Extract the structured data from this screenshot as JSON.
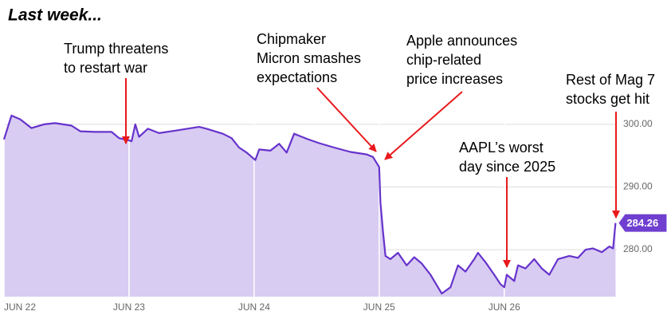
{
  "chart_data": {
    "type": "area",
    "title": "Last week...",
    "x": [
      0,
      0.06,
      0.13,
      0.22,
      0.32,
      0.41,
      0.54,
      0.61,
      0.73,
      0.86,
      0.92,
      0.99,
      1.02,
      1.05,
      1.08,
      1.15,
      1.24,
      1.37,
      1.56,
      1.62,
      1.75,
      1.82,
      1.88,
      1.94,
      2.01,
      2.04,
      2.13,
      2.2,
      2.26,
      2.32,
      2.42,
      2.52,
      2.64,
      2.77,
      2.9,
      2.95,
      3.0,
      3.01,
      3.03,
      3.05,
      3.09,
      3.15,
      3.22,
      3.28,
      3.34,
      3.41,
      3.47,
      3.5,
      3.57,
      3.63,
      3.69,
      3.76,
      3.79,
      3.85,
      3.92,
      3.97,
      4.0,
      4.02,
      4.08,
      4.11,
      4.17,
      4.24,
      4.3,
      4.36,
      4.43,
      4.52,
      4.59,
      4.65,
      4.71,
      4.78,
      4.84,
      4.87,
      4.89
    ],
    "series": [
      {
        "color": "#6633cc",
        "fill": "#d9ccf2",
        "values": [
          297.6,
          301.4,
          300.8,
          299.4,
          300,
          300.2,
          299.8,
          298.9,
          298.8,
          298.8,
          297.8,
          297.5,
          297.3,
          300,
          298,
          299.3,
          298.6,
          299,
          299.6,
          299.3,
          298.5,
          297.8,
          296.3,
          295.5,
          294.3,
          296,
          295.8,
          296.9,
          295.5,
          298.5,
          297.7,
          297,
          296.3,
          295.6,
          295.2,
          294.8,
          293.2,
          287.5,
          283,
          279,
          278.5,
          279.5,
          277.5,
          278.8,
          277.8,
          276,
          274,
          273,
          274,
          277.5,
          276.5,
          278.5,
          279.5,
          278,
          276,
          274.5,
          274,
          276,
          275,
          277.5,
          277,
          278.5,
          277,
          276,
          278.5,
          279,
          278.7,
          280,
          280.2,
          279.6,
          280.5,
          280.2,
          284.26
        ]
      }
    ],
    "xlim": [
      0,
      4.9
    ],
    "xticks": [
      {
        "value": 0,
        "label": "JUN 22"
      },
      {
        "value": 1,
        "label": "JUN 23"
      },
      {
        "value": 2,
        "label": "JUN 24"
      },
      {
        "value": 3,
        "label": "JUN 25"
      },
      {
        "value": 4,
        "label": "JUN 26"
      }
    ],
    "ylim": [
      272.5,
      303.3
    ],
    "yticks": [
      {
        "value": 280,
        "label": "280.00"
      },
      {
        "value": 290,
        "label": "290.00"
      },
      {
        "value": 300,
        "label": "300.00"
      }
    ],
    "grid": true,
    "annotations": [
      {
        "text": [
          "Trump threatens",
          "to restart war"
        ]
      },
      {
        "text": [
          "Chipmaker",
          "Micron smashes",
          "expectations"
        ]
      },
      {
        "text": [
          "Apple announces",
          "chip-related",
          "price increases"
        ]
      },
      {
        "text": [
          "AAPL’s worst",
          "day since 2025"
        ]
      },
      {
        "text": [
          "Rest of Mag 7",
          "stocks get hit"
        ]
      }
    ]
  }
}
